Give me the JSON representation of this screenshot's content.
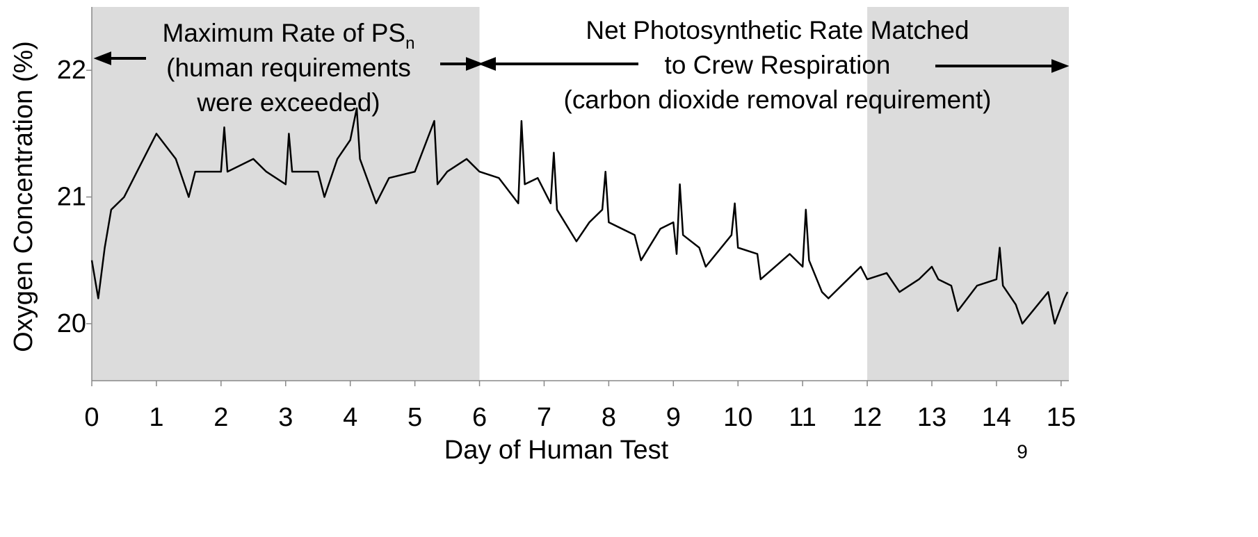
{
  "chart_data": {
    "type": "line",
    "xlabel": "Day of Human Test",
    "ylabel": "Oxygen Concentration (%)",
    "page_number": "9",
    "annotations": [
      {
        "lines": [
          {
            "text": "Maximum Rate of PS",
            "sub": "n"
          },
          {
            "text": "(human requirements"
          },
          {
            "text": "were exceeded)"
          }
        ]
      },
      {
        "lines": [
          {
            "text": "Net Photosynthetic Rate Matched"
          },
          {
            "text": "to Crew Respiration"
          },
          {
            "text": "(carbon dioxide removal requirement)"
          }
        ]
      }
    ],
    "shaded_regions": [
      [
        0,
        6
      ],
      [
        12,
        15.12
      ]
    ],
    "shade_color": "#dcdcdc",
    "xlim": [
      0,
      15.12
    ],
    "ylim": [
      19.55,
      22.5
    ],
    "xticks": [
      0,
      1,
      2,
      3,
      4,
      5,
      6,
      7,
      8,
      9,
      10,
      11,
      12,
      13,
      14,
      15
    ],
    "yticks": [
      20,
      21,
      22
    ],
    "x": [
      0,
      0.1,
      0.2,
      0.3,
      0.5,
      0.7,
      0.9,
      1.0,
      1.3,
      1.5,
      1.6,
      2.0,
      2.05,
      2.1,
      2.5,
      2.7,
      3.0,
      3.05,
      3.1,
      3.5,
      3.6,
      3.8,
      4.0,
      4.1,
      4.15,
      4.4,
      4.6,
      5.0,
      5.3,
      5.35,
      5.5,
      5.8,
      6.0,
      6.3,
      6.6,
      6.65,
      6.7,
      6.9,
      7.1,
      7.15,
      7.2,
      7.5,
      7.7,
      7.9,
      7.95,
      8.0,
      8.4,
      8.5,
      8.8,
      9.0,
      9.05,
      9.1,
      9.15,
      9.4,
      9.5,
      9.9,
      9.95,
      10.0,
      10.3,
      10.35,
      10.8,
      11.0,
      11.05,
      11.1,
      11.3,
      11.4,
      11.6,
      11.9,
      12.0,
      12.3,
      12.5,
      12.8,
      13.0,
      13.1,
      13.3,
      13.4,
      13.7,
      14.0,
      14.05,
      14.1,
      14.3,
      14.4,
      14.8,
      14.9,
      15.05,
      15.1
    ],
    "series": [
      {
        "name": "Oxygen",
        "color": "#000000",
        "values": [
          20.5,
          20.2,
          20.6,
          20.9,
          21.0,
          21.2,
          21.4,
          21.5,
          21.3,
          21.0,
          21.2,
          21.2,
          21.55,
          21.2,
          21.3,
          21.2,
          21.1,
          21.5,
          21.2,
          21.2,
          21.0,
          21.3,
          21.45,
          21.7,
          21.3,
          20.95,
          21.15,
          21.2,
          21.6,
          21.1,
          21.2,
          21.3,
          21.2,
          21.15,
          20.95,
          21.6,
          21.1,
          21.15,
          20.95,
          21.35,
          20.9,
          20.65,
          20.8,
          20.9,
          21.2,
          20.8,
          20.7,
          20.5,
          20.75,
          20.8,
          20.55,
          21.1,
          20.7,
          20.6,
          20.45,
          20.7,
          20.95,
          20.6,
          20.55,
          20.35,
          20.55,
          20.45,
          20.9,
          20.5,
          20.25,
          20.2,
          20.3,
          20.45,
          20.35,
          20.4,
          20.25,
          20.35,
          20.45,
          20.35,
          20.3,
          20.1,
          20.3,
          20.35,
          20.6,
          20.3,
          20.15,
          20.0,
          20.25,
          20.0,
          20.2,
          20.25
        ]
      }
    ]
  }
}
